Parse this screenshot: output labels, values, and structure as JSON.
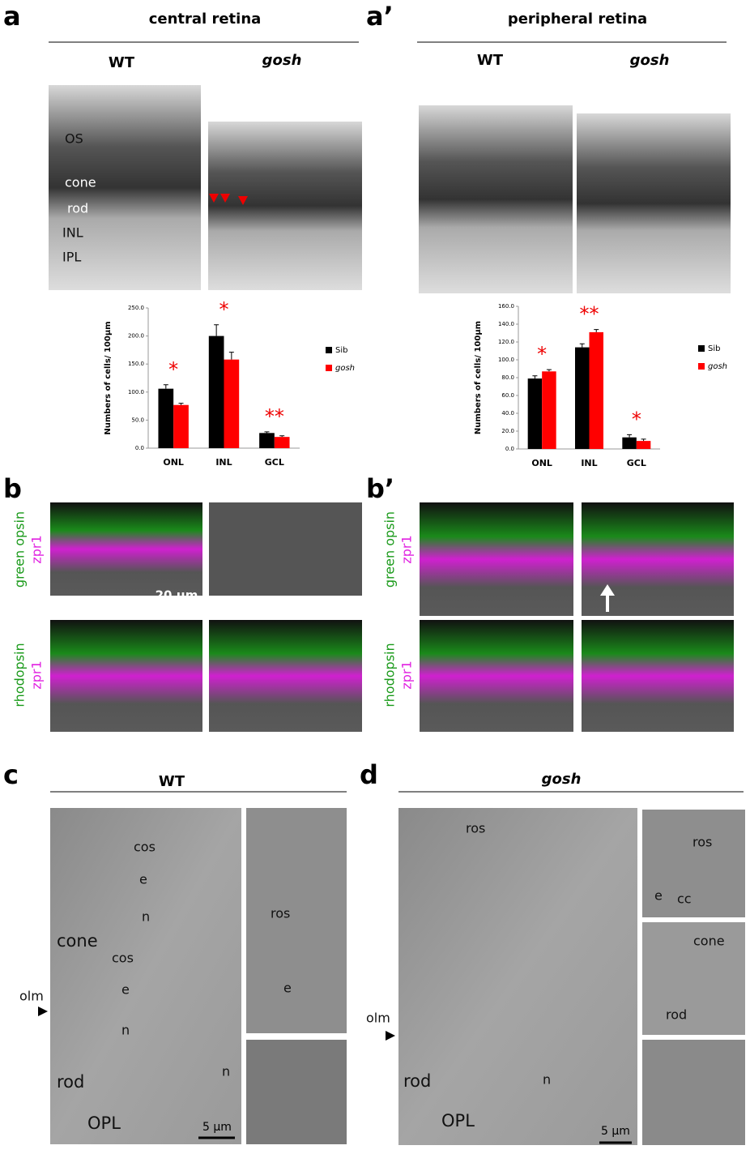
{
  "panel_a": {
    "letter": "a",
    "title": "central retina",
    "columns": [
      "WT",
      "gosh"
    ],
    "image_labels": [
      "OS",
      "cone",
      "rod",
      "INL",
      "IPL"
    ]
  },
  "panel_a_prime": {
    "letter": "a’",
    "title": "peripheral retina",
    "columns": [
      "WT",
      "gosh"
    ]
  },
  "chart_data": [
    {
      "type": "bar",
      "y_label": "Numbers of cells/ 100µm",
      "categories": [
        "ONL",
        "INL",
        "GCL"
      ],
      "series": [
        {
          "name": "Sib",
          "color": "#000000",
          "values": [
            106,
            200,
            27
          ],
          "errors": [
            7,
            20,
            2
          ]
        },
        {
          "name": "gosh",
          "color": "#ff0000",
          "values": [
            77,
            158,
            20
          ],
          "errors": [
            3,
            13,
            2
          ]
        }
      ],
      "annotations": [
        "*",
        "*",
        "**"
      ],
      "ylim": [
        0,
        250
      ],
      "yticks": [
        {
          "value": 0,
          "label": "0.0"
        },
        {
          "value": 50,
          "label": "50.0"
        },
        {
          "value": 100,
          "label": "100.0"
        },
        {
          "value": 150,
          "label": "150.0"
        },
        {
          "value": 200,
          "label": "200.0"
        },
        {
          "value": 250,
          "label": "250.0"
        }
      ],
      "legend": "right"
    },
    {
      "type": "bar",
      "y_label": "Numbers of cells/ 100µm",
      "categories": [
        "ONL",
        "INL",
        "GCL"
      ],
      "series": [
        {
          "name": "Sib",
          "color": "#000000",
          "values": [
            79,
            114,
            13
          ],
          "errors": [
            3,
            4,
            3
          ]
        },
        {
          "name": "gosh",
          "color": "#ff0000",
          "values": [
            87,
            131,
            9
          ],
          "errors": [
            2,
            3,
            2
          ]
        }
      ],
      "annotations": [
        "*",
        "**",
        "*"
      ],
      "ylim": [
        0,
        160
      ],
      "yticks": [
        {
          "value": 0,
          "label": "0.0"
        },
        {
          "value": 20,
          "label": "20.0"
        },
        {
          "value": 40,
          "label": "40.0"
        },
        {
          "value": 60,
          "label": "60.0"
        },
        {
          "value": 80,
          "label": "80.0"
        },
        {
          "value": 100,
          "label": "100.0"
        },
        {
          "value": 120,
          "label": "120.0"
        },
        {
          "value": 140,
          "label": "140.0"
        },
        {
          "value": 160,
          "label": "160.0"
        }
      ],
      "legend": "right"
    }
  ],
  "panel_b": {
    "letter": "b",
    "rows": [
      [
        "green opsin",
        "zpr1"
      ],
      [
        "rhodopsin",
        "zpr1"
      ]
    ],
    "scale_bar": "20 µm"
  },
  "panel_b_prime": {
    "letter": "b’",
    "rows": [
      [
        "green opsin",
        "zpr1"
      ],
      [
        "rhodopsin",
        "zpr1"
      ]
    ]
  },
  "panel_c": {
    "letter": "c",
    "title": "WT",
    "labels": [
      "cos",
      "e",
      "n",
      "cone",
      "cos",
      "e",
      "n",
      "olm",
      "rod",
      "n",
      "OPL",
      "ros",
      "e"
    ],
    "scale_bar": "5 µm"
  },
  "panel_d": {
    "letter": "d",
    "title": "gosh",
    "labels": [
      "ros",
      "olm",
      "rod",
      "n",
      "OPL",
      "ros",
      "e",
      "cc",
      "cone",
      "rod"
    ],
    "scale_bar": "5 µm"
  }
}
